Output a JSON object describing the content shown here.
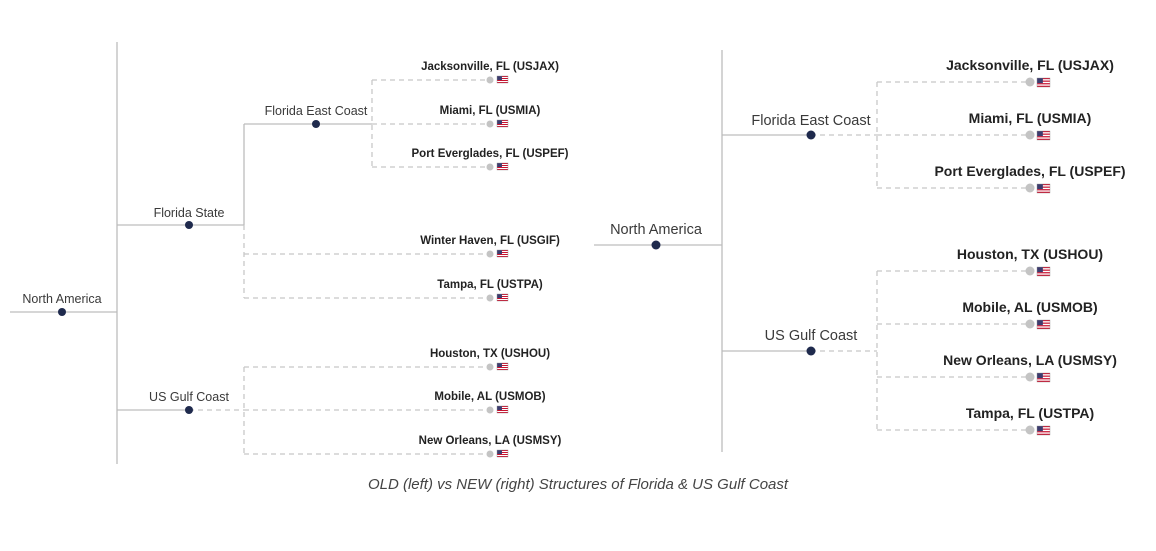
{
  "colors": {
    "node_dot": "#1f2a4d",
    "port_dot": "#c4c4c4",
    "solid_line": "#bdbdbd",
    "dashed_line": "#c8c8c8",
    "divider": "#c9c9c9",
    "flag_red": "#c8102e",
    "flag_blue": "#3c3b6e"
  },
  "left_tree": {
    "root": "North America",
    "groups": [
      {
        "label": "Florida State",
        "subgroups": [
          {
            "label": "Florida East Coast",
            "ports": [
              "Jacksonville, FL (USJAX)",
              "Miami, FL (USMIA)",
              "Port Everglades, FL (USPEF)"
            ]
          }
        ],
        "ports": [
          "Winter Haven, FL (USGIF)",
          "Tampa, FL (USTPA)"
        ]
      },
      {
        "label": "US Gulf Coast",
        "ports": [
          "Houston, TX (USHOU)",
          "Mobile, AL (USMOB)",
          "New Orleans, LA (USMSY)"
        ]
      }
    ]
  },
  "right_tree": {
    "root": "North America",
    "groups": [
      {
        "label": "Florida East Coast",
        "ports": [
          "Jacksonville, FL (USJAX)",
          "Miami, FL (USMIA)",
          "Port Everglades, FL (USPEF)"
        ]
      },
      {
        "label": "US Gulf Coast",
        "ports": [
          "Houston, TX (USHOU)",
          "Mobile, AL (USMOB)",
          "New Orleans, LA (USMSY)",
          "Tampa, FL (USTPA)"
        ]
      }
    ]
  },
  "caption": "OLD (left) vs NEW (right) Structures of Florida & US Gulf Coast",
  "icons": {
    "port_flag": "us-flag-icon"
  }
}
